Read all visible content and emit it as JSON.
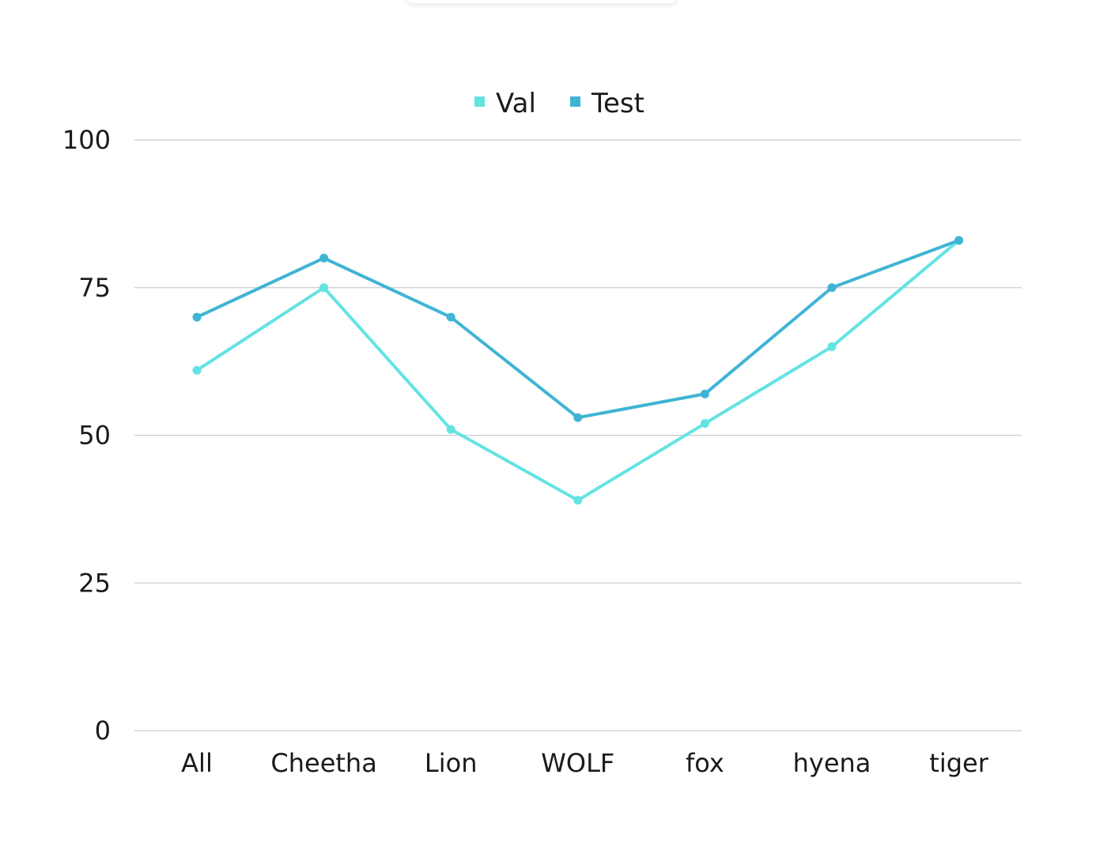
{
  "chart_data": {
    "type": "line",
    "categories": [
      "All",
      "Cheetha",
      "Lion",
      "WOLF",
      "fox",
      "hyena",
      "tiger"
    ],
    "series": [
      {
        "name": "Val",
        "values": [
          61,
          75,
          51,
          39,
          52,
          65,
          83
        ],
        "color": "#64E3E3"
      },
      {
        "name": "Test",
        "values": [
          70,
          80,
          70,
          53,
          57,
          75,
          83
        ],
        "color": "#40B4D4"
      }
    ],
    "yticks": [
      0,
      25,
      50,
      75,
      100
    ],
    "ylim": [
      0,
      100
    ],
    "grid": true,
    "gridColor": "#cccccc",
    "legend": "top-center"
  }
}
